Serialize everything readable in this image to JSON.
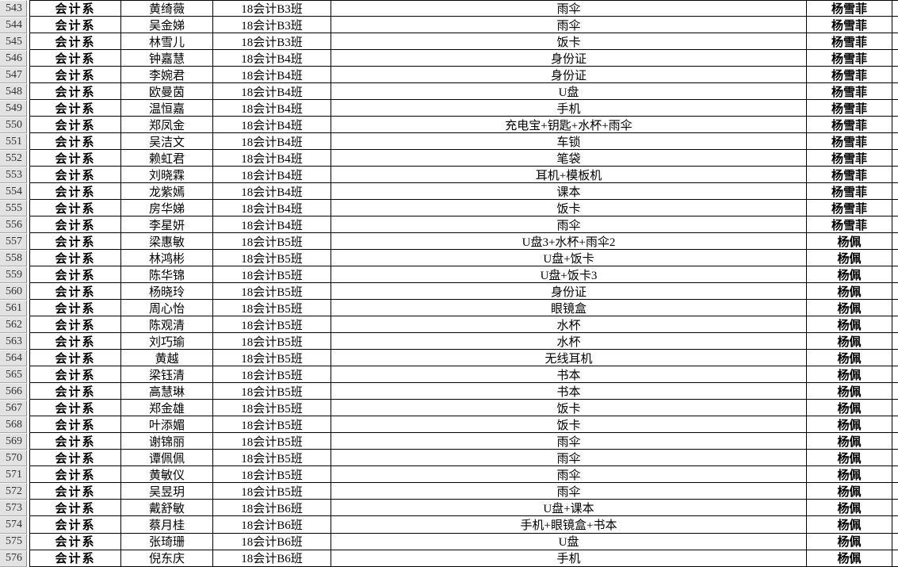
{
  "colors": {
    "grid": "#000000",
    "gutter_bg": "#e2e2e2",
    "gutter_text": "#333333",
    "cell_bg": "#ffffff"
  },
  "sheet": {
    "department_label": "会计系",
    "keepers": [
      "杨雪菲",
      "杨佩"
    ],
    "rows": [
      {
        "num": "543",
        "dept": "会计系",
        "name": "黄绮薇",
        "cls": "18会计B3班",
        "item": "雨伞",
        "keeper": "杨雪菲"
      },
      {
        "num": "544",
        "dept": "会计系",
        "name": "吴金娣",
        "cls": "18会计B3班",
        "item": "雨伞",
        "keeper": "杨雪菲"
      },
      {
        "num": "545",
        "dept": "会计系",
        "name": "林雪儿",
        "cls": "18会计B3班",
        "item": "饭卡",
        "keeper": "杨雪菲"
      },
      {
        "num": "546",
        "dept": "会计系",
        "name": "钟嘉慧",
        "cls": "18会计B4班",
        "item": "身份证",
        "keeper": "杨雪菲"
      },
      {
        "num": "547",
        "dept": "会计系",
        "name": "李婉君",
        "cls": "18会计B4班",
        "item": "身份证",
        "keeper": "杨雪菲"
      },
      {
        "num": "548",
        "dept": "会计系",
        "name": "欧曼茵",
        "cls": "18会计B4班",
        "item": "U盘",
        "keeper": "杨雪菲"
      },
      {
        "num": "549",
        "dept": "会计系",
        "name": "温恒嘉",
        "cls": "18会计B4班",
        "item": "手机",
        "keeper": "杨雪菲"
      },
      {
        "num": "550",
        "dept": "会计系",
        "name": "郑凤金",
        "cls": "18会计B4班",
        "item": "充电宝+钥匙+水杯+雨伞",
        "keeper": "杨雪菲"
      },
      {
        "num": "551",
        "dept": "会计系",
        "name": "吴洁文",
        "cls": "18会计B4班",
        "item": "车锁",
        "keeper": "杨雪菲"
      },
      {
        "num": "552",
        "dept": "会计系",
        "name": "赖虹君",
        "cls": "18会计B4班",
        "item": "笔袋",
        "keeper": "杨雪菲"
      },
      {
        "num": "553",
        "dept": "会计系",
        "name": "刘晓霖",
        "cls": "18会计B4班",
        "item": "耳机+模板机",
        "keeper": "杨雪菲"
      },
      {
        "num": "554",
        "dept": "会计系",
        "name": "龙紫嫣",
        "cls": "18会计B4班",
        "item": "课本",
        "keeper": "杨雪菲"
      },
      {
        "num": "555",
        "dept": "会计系",
        "name": "房华娣",
        "cls": "18会计B4班",
        "item": "饭卡",
        "keeper": "杨雪菲"
      },
      {
        "num": "556",
        "dept": "会计系",
        "name": "李星妍",
        "cls": "18会计B4班",
        "item": "雨伞",
        "keeper": "杨雪菲"
      },
      {
        "num": "557",
        "dept": "会计系",
        "name": "梁惠敏",
        "cls": "18会计B5班",
        "item": "U盘3+水杯+雨伞2",
        "keeper": "杨佩"
      },
      {
        "num": "558",
        "dept": "会计系",
        "name": "林鸿彬",
        "cls": "18会计B5班",
        "item": "U盘+饭卡",
        "keeper": "杨佩"
      },
      {
        "num": "559",
        "dept": "会计系",
        "name": "陈华锦",
        "cls": "18会计B5班",
        "item": "U盘+饭卡3",
        "keeper": "杨佩"
      },
      {
        "num": "560",
        "dept": "会计系",
        "name": "杨晓玲",
        "cls": "18会计B5班",
        "item": "身份证",
        "keeper": "杨佩"
      },
      {
        "num": "561",
        "dept": "会计系",
        "name": "周心怡",
        "cls": "18会计B5班",
        "item": "眼镜盒",
        "keeper": "杨佩"
      },
      {
        "num": "562",
        "dept": "会计系",
        "name": "陈观清",
        "cls": "18会计B5班",
        "item": "水杯",
        "keeper": "杨佩"
      },
      {
        "num": "563",
        "dept": "会计系",
        "name": "刘巧瑜",
        "cls": "18会计B5班",
        "item": "水杯",
        "keeper": "杨佩"
      },
      {
        "num": "564",
        "dept": "会计系",
        "name": "黄越",
        "cls": "18会计B5班",
        "item": "无线耳机",
        "keeper": "杨佩"
      },
      {
        "num": "565",
        "dept": "会计系",
        "name": "梁钰清",
        "cls": "18会计B5班",
        "item": "书本",
        "keeper": "杨佩"
      },
      {
        "num": "566",
        "dept": "会计系",
        "name": "高慧琳",
        "cls": "18会计B5班",
        "item": "书本",
        "keeper": "杨佩"
      },
      {
        "num": "567",
        "dept": "会计系",
        "name": "郑金雄",
        "cls": "18会计B5班",
        "item": "饭卡",
        "keeper": "杨佩"
      },
      {
        "num": "568",
        "dept": "会计系",
        "name": "叶添媚",
        "cls": "18会计B5班",
        "item": "饭卡",
        "keeper": "杨佩"
      },
      {
        "num": "569",
        "dept": "会计系",
        "name": "谢锦丽",
        "cls": "18会计B5班",
        "item": "雨伞",
        "keeper": "杨佩"
      },
      {
        "num": "570",
        "dept": "会计系",
        "name": "谭佩佩",
        "cls": "18会计B5班",
        "item": "雨伞",
        "keeper": "杨佩"
      },
      {
        "num": "571",
        "dept": "会计系",
        "name": "黄敏仪",
        "cls": "18会计B5班",
        "item": "雨伞",
        "keeper": "杨佩"
      },
      {
        "num": "572",
        "dept": "会计系",
        "name": "吴昱玥",
        "cls": "18会计B5班",
        "item": "雨伞",
        "keeper": "杨佩"
      },
      {
        "num": "573",
        "dept": "会计系",
        "name": "戴舒敏",
        "cls": "18会计B6班",
        "item": "U盘+课本",
        "keeper": "杨佩"
      },
      {
        "num": "574",
        "dept": "会计系",
        "name": "蔡月桂",
        "cls": "18会计B6班",
        "item": "手机+眼镜盒+书本",
        "keeper": "杨佩"
      },
      {
        "num": "575",
        "dept": "会计系",
        "name": "张琦珊",
        "cls": "18会计B6班",
        "item": "U盘",
        "keeper": "杨佩"
      },
      {
        "num": "576",
        "dept": "会计系",
        "name": "倪东庆",
        "cls": "18会计B6班",
        "item": "手机",
        "keeper": "杨佩"
      }
    ]
  }
}
